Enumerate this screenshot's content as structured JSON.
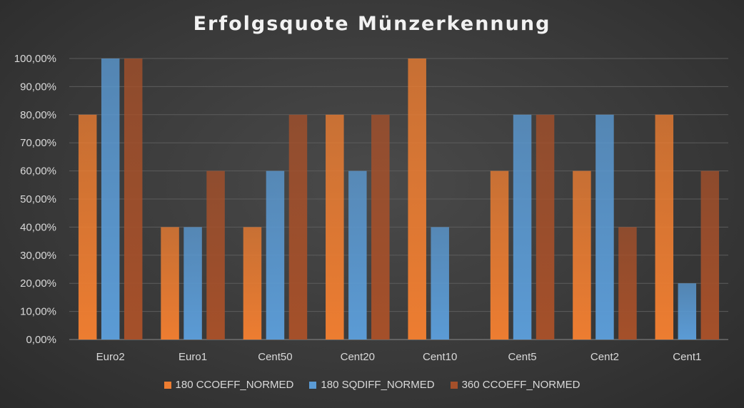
{
  "chart_data": {
    "type": "bar",
    "title": "Erfolgsquote Münzerkennung",
    "xlabel": "",
    "ylabel": "",
    "ylim": [
      0,
      100
    ],
    "yticks": [
      "0,00%",
      "10,00%",
      "20,00%",
      "30,00%",
      "40,00%",
      "50,00%",
      "60,00%",
      "70,00%",
      "80,00%",
      "90,00%",
      "100,00%"
    ],
    "categories": [
      "Euro2",
      "Euro1",
      "Cent50",
      "Cent20",
      "Cent10",
      "Cent5",
      "Cent2",
      "Cent1"
    ],
    "series": [
      {
        "name": "180 CCOEFF_NORMED",
        "values": [
          80,
          40,
          40,
          80,
          100,
          60,
          60,
          80
        ],
        "color": "#ED7D31"
      },
      {
        "name": "180 SQDIFF_NORMED",
        "values": [
          100,
          40,
          60,
          60,
          40,
          80,
          80,
          20
        ],
        "color": "#5B9BD5"
      },
      {
        "name": "360 CCOEFF_NORMED",
        "values": [
          100,
          60,
          80,
          80,
          0,
          80,
          40,
          60
        ],
        "color": "#A5502A"
      }
    ],
    "grid": true,
    "legend_position": "bottom"
  }
}
